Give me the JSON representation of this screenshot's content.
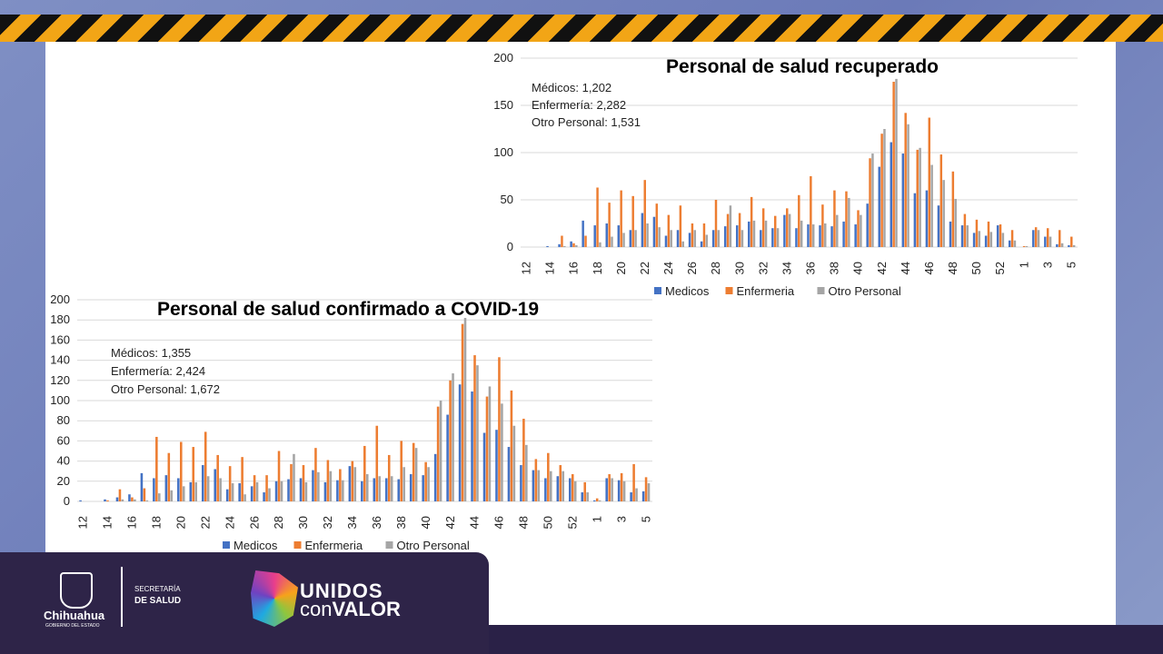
{
  "colors": {
    "medicos": "#4472c4",
    "enfermeria": "#ed7d31",
    "otro": "#a5a5a5"
  },
  "footer": {
    "state": "Chihuahua",
    "state_sub": "GOBIERNO DEL ESTADO",
    "secretaria": "SECRETARÍA",
    "salud": "DE SALUD",
    "campaign_1": "UNIDOS",
    "campaign_2a": "con",
    "campaign_2b": "VALOR"
  },
  "chart_data": [
    {
      "type": "bar",
      "title": "Personal de salud recuperado",
      "ylim": [
        0,
        200
      ],
      "yticks": [
        0,
        50,
        100,
        150,
        200
      ],
      "grid": true,
      "legend": "bottom",
      "annotations": [
        "Médicos: 1,202",
        "Enfermería: 2,282",
        "Otro Personal: 1,531"
      ],
      "categories": [
        "12",
        "13",
        "14",
        "15",
        "16",
        "17",
        "18",
        "19",
        "20",
        "21",
        "22",
        "23",
        "24",
        "25",
        "26",
        "27",
        "28",
        "29",
        "30",
        "31",
        "32",
        "33",
        "34",
        "35",
        "36",
        "37",
        "38",
        "39",
        "40",
        "41",
        "42",
        "43",
        "44",
        "45",
        "46",
        "47",
        "48",
        "49",
        "50",
        "51",
        "52",
        "53",
        "1",
        "2",
        "3",
        "4",
        "5"
      ],
      "series": [
        {
          "name": "Medicos",
          "values": [
            0,
            0,
            1,
            3,
            6,
            28,
            23,
            25,
            23,
            18,
            36,
            32,
            12,
            18,
            15,
            6,
            18,
            22,
            23,
            27,
            18,
            20,
            34,
            20,
            24,
            23,
            22,
            27,
            24,
            46,
            85,
            111,
            99,
            57,
            60,
            44,
            27,
            23,
            15,
            12,
            23,
            7,
            0,
            18,
            11,
            3,
            2
          ]
        },
        {
          "name": "Enfermeria",
          "values": [
            0,
            0,
            0,
            12,
            4,
            12,
            63,
            47,
            60,
            54,
            71,
            46,
            34,
            44,
            25,
            25,
            50,
            35,
            36,
            53,
            41,
            33,
            41,
            55,
            75,
            45,
            60,
            59,
            39,
            94,
            120,
            175,
            142,
            103,
            137,
            98,
            80,
            35,
            29,
            27,
            24,
            18,
            1,
            21,
            20,
            18,
            11
          ]
        },
        {
          "name": "Otro Personal",
          "values": [
            0,
            0,
            0,
            1,
            2,
            0,
            5,
            11,
            15,
            18,
            25,
            21,
            18,
            6,
            18,
            13,
            18,
            44,
            18,
            28,
            28,
            20,
            35,
            28,
            24,
            25,
            34,
            52,
            34,
            99,
            125,
            178,
            130,
            105,
            87,
            71,
            51,
            23,
            17,
            16,
            15,
            7,
            1,
            18,
            11,
            4,
            2
          ]
        }
      ]
    },
    {
      "type": "bar",
      "title": "Personal de salud confirmado a COVID-19",
      "ylim": [
        0,
        200
      ],
      "yticks": [
        0,
        20,
        40,
        60,
        80,
        100,
        120,
        140,
        160,
        180,
        200
      ],
      "grid": true,
      "legend": "bottom",
      "annotations": [
        "Médicos: 1,355",
        "Enfermería: 2,424",
        "Otro Personal: 1,672"
      ],
      "categories": [
        "12",
        "13",
        "14",
        "15",
        "16",
        "17",
        "18",
        "19",
        "20",
        "21",
        "22",
        "23",
        "24",
        "25",
        "26",
        "27",
        "28",
        "29",
        "30",
        "31",
        "32",
        "33",
        "34",
        "35",
        "36",
        "37",
        "38",
        "39",
        "40",
        "41",
        "42",
        "43",
        "44",
        "45",
        "46",
        "47",
        "48",
        "49",
        "50",
        "51",
        "52",
        "53",
        "1",
        "2",
        "3",
        "4",
        "5"
      ],
      "series": [
        {
          "name": "Medicos",
          "values": [
            1,
            0,
            2,
            4,
            7,
            28,
            23,
            26,
            23,
            19,
            36,
            32,
            12,
            18,
            15,
            9,
            20,
            22,
            23,
            31,
            19,
            21,
            35,
            20,
            23,
            23,
            22,
            27,
            26,
            47,
            86,
            116,
            109,
            68,
            71,
            54,
            36,
            31,
            23,
            25,
            23,
            9,
            1,
            23,
            21,
            9,
            10
          ]
        },
        {
          "name": "Enfermeria",
          "values": [
            0,
            0,
            1,
            12,
            4,
            13,
            64,
            48,
            59,
            54,
            69,
            46,
            35,
            44,
            26,
            26,
            50,
            37,
            36,
            53,
            41,
            32,
            40,
            55,
            75,
            46,
            60,
            58,
            39,
            94,
            120,
            176,
            145,
            104,
            143,
            110,
            82,
            42,
            48,
            36,
            27,
            19,
            3,
            27,
            28,
            37,
            24
          ]
        },
        {
          "name": "Otro Personal",
          "values": [
            0,
            0,
            0,
            2,
            2,
            1,
            8,
            11,
            15,
            19,
            25,
            23,
            18,
            7,
            19,
            13,
            20,
            47,
            19,
            29,
            30,
            21,
            34,
            27,
            25,
            25,
            34,
            53,
            34,
            100,
            127,
            182,
            135,
            114,
            97,
            75,
            56,
            31,
            30,
            30,
            20,
            9,
            1,
            23,
            20,
            13,
            18
          ]
        }
      ]
    }
  ]
}
